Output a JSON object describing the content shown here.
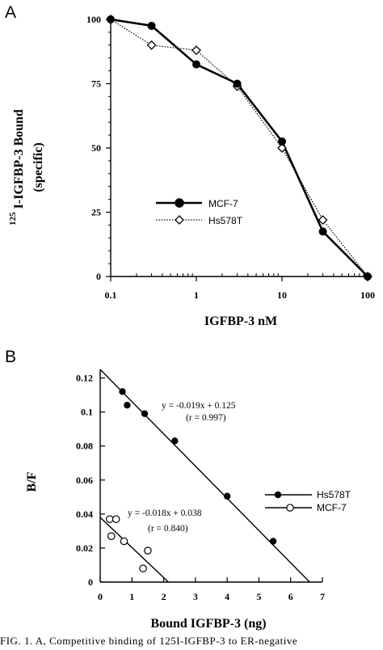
{
  "chart_data": [
    {
      "type": "line",
      "panel_label": "A",
      "xlabel": "IGFBP-3 nM",
      "ylabel": "I-IGFBP-3 Bound",
      "ylabel_sup": "125",
      "ylabel_sub": "(specific)",
      "x_scale": "log",
      "xlim": [
        0.1,
        100
      ],
      "ylim": [
        0,
        100
      ],
      "x_ticks": [
        0.1,
        1,
        10,
        100
      ],
      "x_tick_labels": [
        "0.1",
        "1",
        "10",
        "100"
      ],
      "y_ticks": [
        0,
        25,
        50,
        75,
        100
      ],
      "y_tick_labels": [
        "0",
        "25",
        "50",
        "75",
        "100"
      ],
      "legend_position": "center-left",
      "series": [
        {
          "name": "MCF-7",
          "marker": "filled-circle",
          "line": "solid",
          "x": [
            0.1,
            0.3,
            1,
            3,
            10,
            30,
            100
          ],
          "y": [
            100,
            97.5,
            82.5,
            75,
            52.5,
            17.5,
            0
          ]
        },
        {
          "name": "Hs578T",
          "marker": "open-diamond",
          "line": "dotted",
          "x": [
            0.1,
            0.3,
            1,
            3,
            10,
            30,
            100
          ],
          "y": [
            100,
            90,
            88,
            74,
            50,
            22,
            0
          ]
        }
      ]
    },
    {
      "type": "scatter",
      "panel_label": "B",
      "xlabel": "Bound IGFBP-3 (ng)",
      "ylabel": "B/F",
      "xlim": [
        0,
        7
      ],
      "ylim": [
        0,
        0.125
      ],
      "x_ticks": [
        0,
        1,
        2,
        3,
        4,
        5,
        6,
        7
      ],
      "x_tick_labels": [
        "0",
        "1",
        "2",
        "3",
        "4",
        "5",
        "6",
        "7"
      ],
      "y_ticks": [
        0,
        0.02,
        0.04,
        0.06,
        0.08,
        0.1,
        0.12
      ],
      "y_tick_labels": [
        "0",
        "0.02",
        "0.04",
        "0.06",
        "0.08",
        "0.1",
        "0.12"
      ],
      "legend_position": "right",
      "series": [
        {
          "name": "Hs578T",
          "marker": "filled-circle",
          "x": [
            0.7,
            0.85,
            1.4,
            2.35,
            4.0,
            5.45
          ],
          "y": [
            0.112,
            0.104,
            0.099,
            0.083,
            0.0505,
            0.024
          ],
          "fit": {
            "slope": -0.019,
            "intercept": 0.125,
            "line_x": [
              0,
              6.6
            ],
            "equation": "y = -0.019x + 0.125",
            "r_text": "(r = 0.997)"
          }
        },
        {
          "name": "MCF-7",
          "marker": "open-circle",
          "x": [
            0.3,
            0.5,
            0.35,
            0.75,
            1.5,
            1.35
          ],
          "y": [
            0.037,
            0.037,
            0.027,
            0.024,
            0.0185,
            0.008
          ],
          "fit": {
            "slope": -0.018,
            "intercept": 0.038,
            "line_x": [
              0,
              2.15
            ],
            "equation": "y = -0.018x + 0.038",
            "r_text": "(r = 0.840)"
          }
        }
      ]
    }
  ],
  "caption": "FIG. 1. A, Competitive binding of 125I-IGFBP-3 to ER-negative"
}
